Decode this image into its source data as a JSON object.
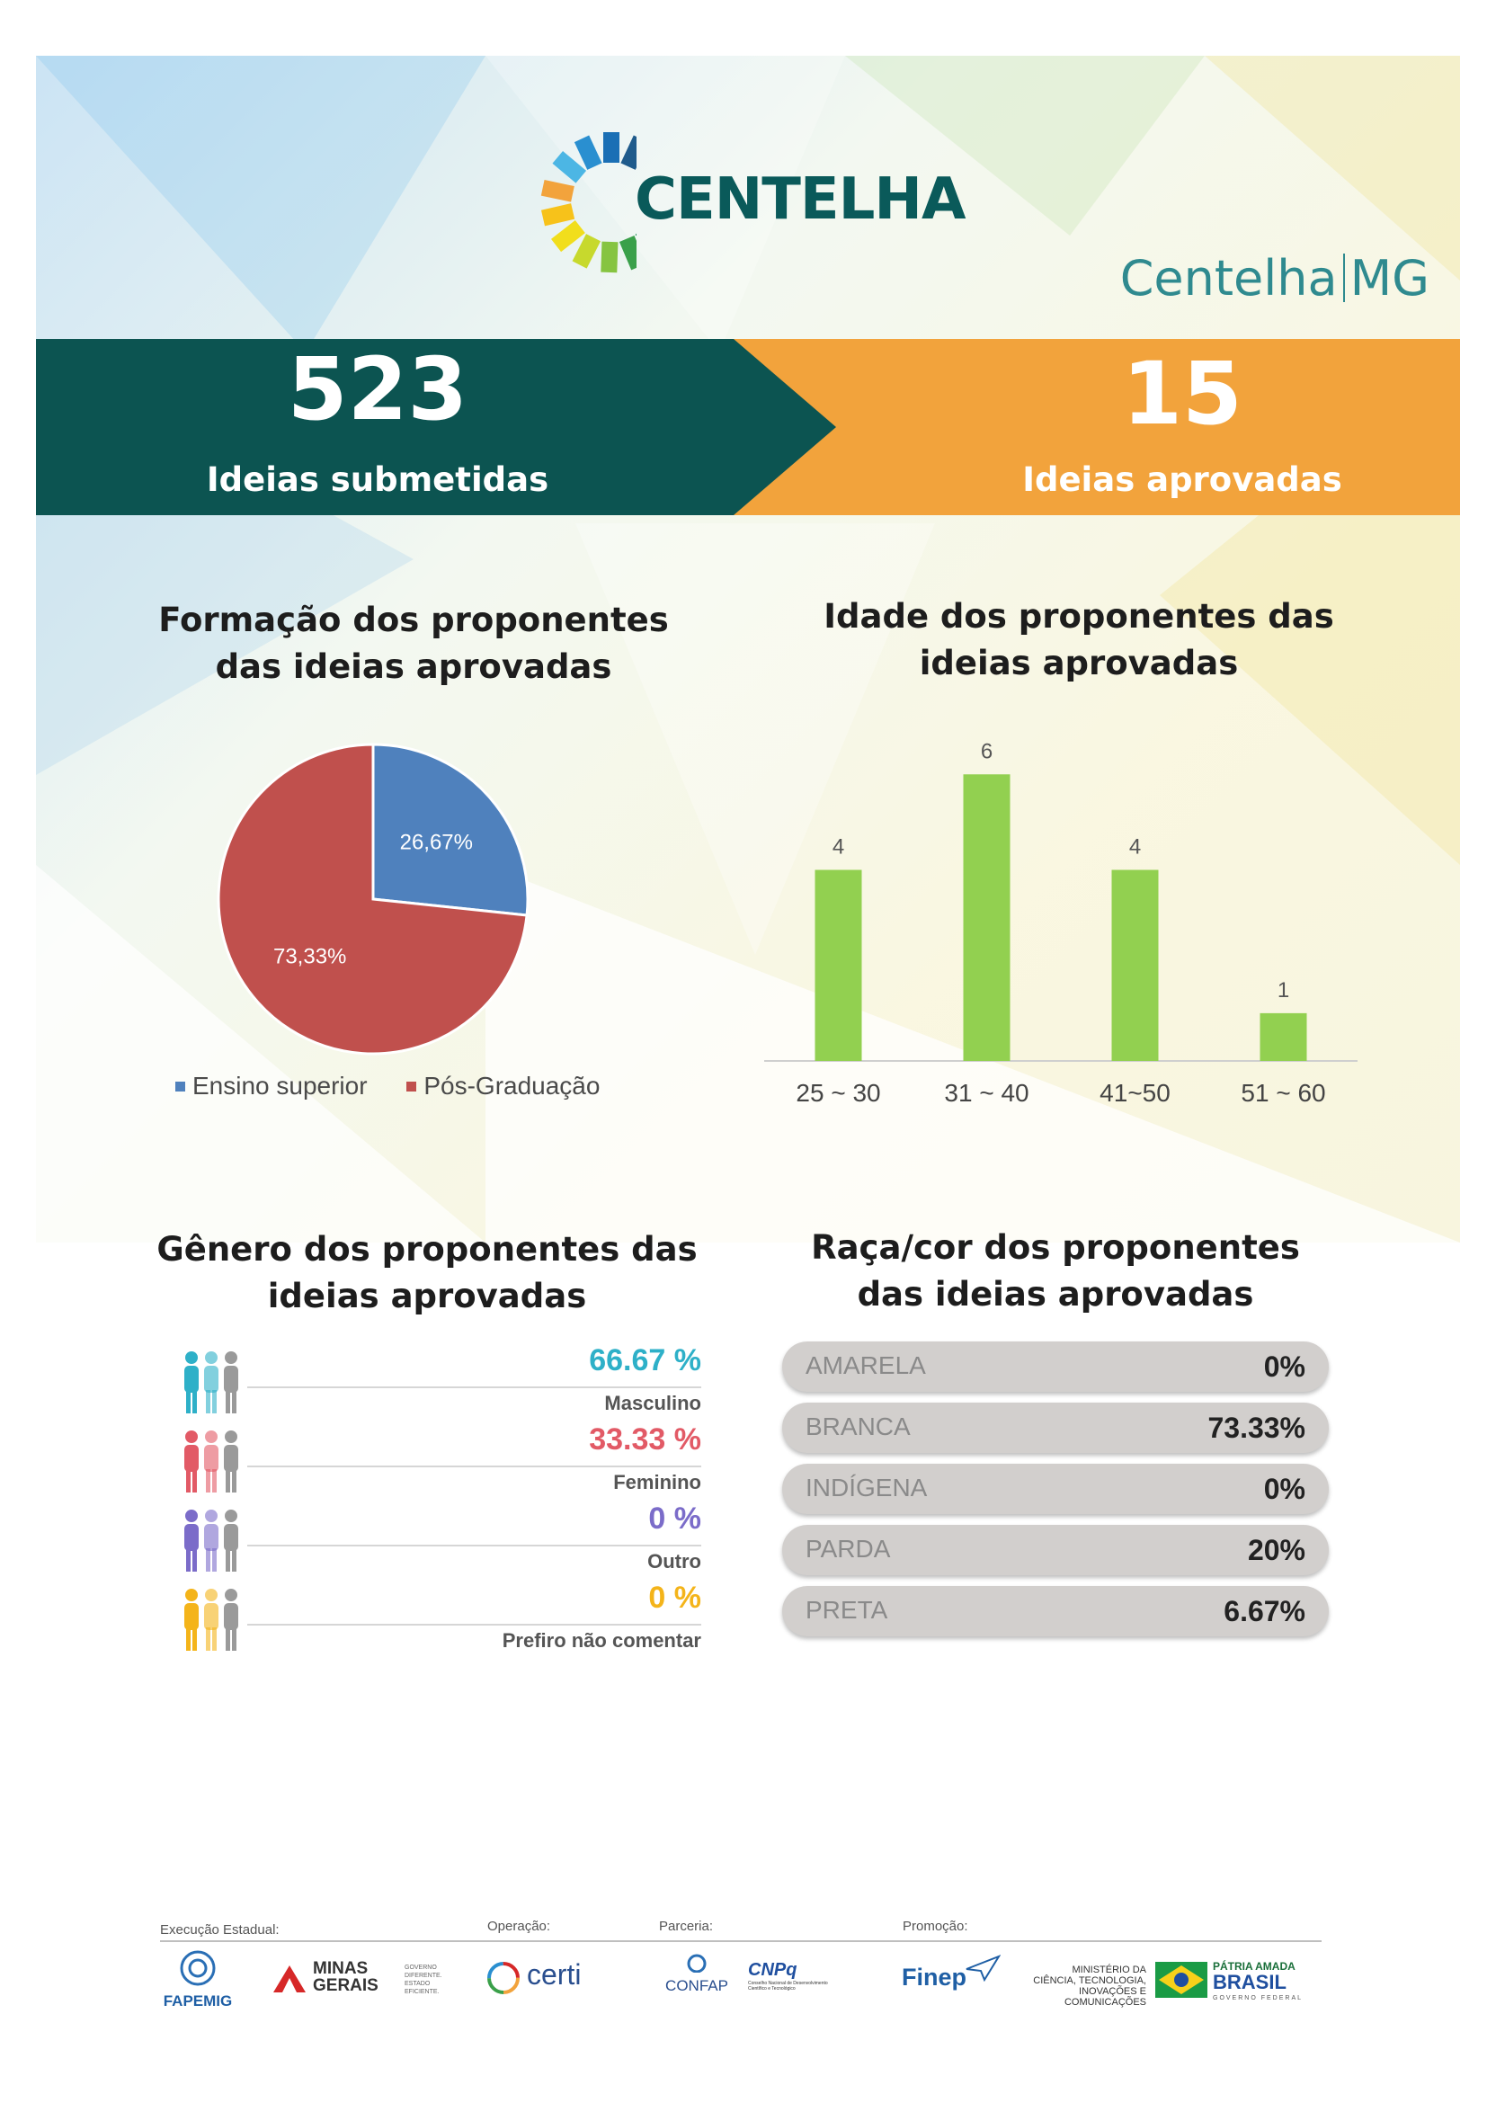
{
  "brand": {
    "logo_text": "CENTELHA",
    "subbrand_left": "Centelha",
    "subbrand_right": "MG"
  },
  "stats": {
    "submitted_value": "523",
    "submitted_label": "Ideias submetidas",
    "approved_value": "15",
    "approved_label": "Ideias aprovadas"
  },
  "sections": {
    "education_title_1": "Formação dos proponentes",
    "education_title_2": "das ideias aprovadas",
    "age_title_1": "Idade dos proponentes das",
    "age_title_2": "ideias aprovadas",
    "gender_title_1": "Gênero dos proponentes das",
    "gender_title_2": "ideias aprovadas",
    "race_title_1": "Raça/cor dos proponentes",
    "race_title_2": "das ideias aprovadas"
  },
  "colors": {
    "teal": "#0c5451",
    "orange": "#f2a33c",
    "pie_blue": "#4f81bd",
    "pie_red": "#c0504d",
    "bar_green": "#92d050"
  },
  "chart_data": [
    {
      "type": "pie",
      "slices": [
        {
          "name": "Ensino superior",
          "value": 26.67,
          "label": "26,67%",
          "color": "#4f81bd"
        },
        {
          "name": "Pós-Graduação",
          "value": 73.33,
          "label": "73,33%",
          "color": "#c0504d"
        }
      ],
      "legend_position": "bottom"
    },
    {
      "type": "bar",
      "categories": [
        "25 ~ 30",
        "31 ~ 40",
        "41~50",
        "51 ~ 60"
      ],
      "values": [
        4,
        6,
        4,
        1
      ],
      "ylim": [
        0,
        6.4
      ],
      "grid": false
    }
  ],
  "gender": [
    {
      "pct": "66.67 %",
      "label": "Masculino",
      "color": "#2eb0c8",
      "icon": "people-icon"
    },
    {
      "pct": "33.33 %",
      "label": "Feminino",
      "color": "#e25a66",
      "icon": "people-icon"
    },
    {
      "pct": "0 %",
      "label": "Outro",
      "color": "#7b6cc9",
      "icon": "people-icon"
    },
    {
      "pct": "0 %",
      "label": "Prefiro não comentar",
      "color": "#f4b41a",
      "icon": "people-icon"
    }
  ],
  "race": [
    {
      "name": "AMARELA",
      "value": "0%"
    },
    {
      "name": "BRANCA",
      "value": "73.33%"
    },
    {
      "name": "INDÍGENA",
      "value": "0%"
    },
    {
      "name": "PARDA",
      "value": "20%"
    },
    {
      "name": "PRETA",
      "value": "6.67%"
    }
  ],
  "footer": {
    "exec_label": "Execução Estadual:",
    "op_label": "Operação:",
    "partner_label": "Parceria:",
    "promo_label": "Promoção:",
    "fapemig": "FAPEMIG",
    "minas_1": "MINAS",
    "minas_2": "GERAIS",
    "minas_tag": "GOVERNO DIFERENTE. ESTADO EFICIENTE.",
    "certi": "certi",
    "confap": "CONFAP",
    "cnpq": "CNPq",
    "cnpq_sub": "Conselho Nacional de Desenvolvimento Científico e Tecnológico",
    "finep": "Finep",
    "mctic_1": "MINISTÉRIO DA",
    "mctic_2": "CIÊNCIA, TECNOLOGIA,",
    "mctic_3": "INOVAÇÕES E COMUNICAÇÕES",
    "brasil_1": "PÁTRIA AMADA",
    "brasil_2": "BRASIL",
    "brasil_3": "GOVERNO FEDERAL"
  }
}
